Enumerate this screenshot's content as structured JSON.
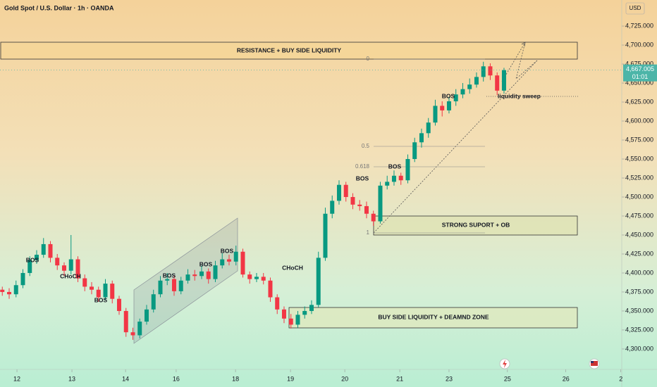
{
  "chart_data": {
    "type": "candlestick",
    "title": "Gold Spot / U.S. Dollar · 1h · OANDA",
    "currency": "USD",
    "up_color": "#089981",
    "down_color": "#f23645",
    "x": [
      1,
      4,
      7,
      10,
      13,
      16,
      19,
      22,
      25,
      28,
      31,
      34,
      37,
      40,
      43,
      46,
      49,
      52,
      55,
      58,
      61,
      64,
      67,
      70,
      73,
      76,
      79,
      82,
      85,
      88,
      91,
      94,
      97,
      100,
      103,
      106,
      109,
      112,
      115,
      118,
      121,
      124,
      127,
      130,
      133,
      136,
      139,
      142,
      145,
      148,
      151,
      154,
      157,
      160,
      163,
      166,
      169,
      172,
      175,
      178,
      181,
      184,
      187,
      190,
      193,
      196,
      199,
      202,
      205,
      208,
      211,
      214,
      217,
      220
    ],
    "open": [
      4378,
      4375,
      4372,
      4384,
      4400,
      4417,
      4424,
      4438,
      4420,
      4410,
      4403,
      4418,
      4393,
      4382,
      4378,
      4368,
      4386,
      4366,
      4350,
      4322,
      4318,
      4336,
      4352,
      4372,
      4390,
      4392,
      4376,
      4390,
      4398,
      4396,
      4402,
      4392,
      4410,
      4418,
      4415,
      4428,
      4398,
      4392,
      4395,
      4390,
      4368,
      4352,
      4340,
      4332,
      4345,
      4350,
      4358,
      4420,
      4478,
      4495,
      4516,
      4500,
      4490,
      4488,
      4478,
      4468,
      4515,
      4520,
      4528,
      4522,
      4550,
      4572,
      4584,
      4598,
      4620,
      4614,
      4626,
      4635,
      4642,
      4648,
      4658,
      4672,
      4660,
      4640
    ],
    "high": [
      4382,
      4380,
      4390,
      4405,
      4422,
      4430,
      4446,
      4442,
      4425,
      4414,
      4450,
      4422,
      4398,
      4388,
      4382,
      4392,
      4390,
      4370,
      4354,
      4328,
      4340,
      4358,
      4378,
      4396,
      4400,
      4396,
      4395,
      4405,
      4404,
      4410,
      4406,
      4416,
      4426,
      4424,
      4436,
      4432,
      4402,
      4400,
      4400,
      4394,
      4372,
      4356,
      4346,
      4350,
      4356,
      4364,
      4428,
      4486,
      4502,
      4522,
      4520,
      4505,
      4496,
      4494,
      4482,
      4520,
      4528,
      4535,
      4532,
      4556,
      4578,
      4590,
      4604,
      4628,
      4626,
      4632,
      4642,
      4650,
      4656,
      4664,
      4678,
      4676,
      4664,
      4670
    ],
    "low": [
      4370,
      4366,
      4368,
      4380,
      4396,
      4412,
      4420,
      4414,
      4404,
      4396,
      4398,
      4388,
      4376,
      4372,
      4362,
      4364,
      4360,
      4345,
      4316,
      4312,
      4314,
      4332,
      4348,
      4368,
      4384,
      4370,
      4372,
      4386,
      4390,
      4392,
      4386,
      4388,
      4406,
      4410,
      4410,
      4394,
      4386,
      4388,
      4385,
      4362,
      4346,
      4334,
      4327,
      4328,
      4340,
      4346,
      4355,
      4416,
      4472,
      4490,
      4494,
      4484,
      4482,
      4472,
      4462,
      4465,
      4510,
      4515,
      4516,
      4518,
      4546,
      4565,
      4578,
      4594,
      4606,
      4610,
      4620,
      4630,
      4636,
      4644,
      4652,
      4654,
      4634,
      4636
    ],
    "close": [
      4375,
      4372,
      4384,
      4400,
      4417,
      4424,
      4438,
      4420,
      4410,
      4403,
      4418,
      4393,
      4382,
      4378,
      4368,
      4386,
      4366,
      4350,
      4322,
      4318,
      4336,
      4352,
      4372,
      4390,
      4392,
      4376,
      4390,
      4398,
      4396,
      4402,
      4392,
      4410,
      4418,
      4415,
      4428,
      4398,
      4392,
      4395,
      4390,
      4368,
      4352,
      4340,
      4332,
      4345,
      4350,
      4358,
      4420,
      4478,
      4495,
      4516,
      4500,
      4490,
      4488,
      4478,
      4468,
      4515,
      4520,
      4528,
      4522,
      4550,
      4572,
      4584,
      4598,
      4620,
      4614,
      4626,
      4635,
      4642,
      4648,
      4658,
      4672,
      4660,
      4640,
      4667
    ],
    "xlim": [
      0,
      271.4
    ],
    "xticks": [
      {
        "value": 7.4,
        "label": "12"
      },
      {
        "value": 31.4,
        "label": "13"
      },
      {
        "value": 54.8,
        "label": "14"
      },
      {
        "value": 76.9,
        "label": "16"
      },
      {
        "value": 102.8,
        "label": "18"
      },
      {
        "value": 126.8,
        "label": "19"
      },
      {
        "value": 150.5,
        "label": "20"
      },
      {
        "value": 174.5,
        "label": "21"
      },
      {
        "value": 196,
        "label": "23"
      },
      {
        "value": 221.5,
        "label": "25"
      },
      {
        "value": 247,
        "label": "26"
      },
      {
        "value": 271,
        "label": "2"
      }
    ],
    "ylim": [
      4273.1,
      4759.3
    ],
    "yticks": [
      {
        "value": 4300,
        "label": "4,300.000"
      },
      {
        "value": 4325,
        "label": "4,325.000"
      },
      {
        "value": 4350,
        "label": "4,350.000"
      },
      {
        "value": 4375,
        "label": "4,375.000"
      },
      {
        "value": 4400,
        "label": "4,400.000"
      },
      {
        "value": 4425,
        "label": "4,425.000"
      },
      {
        "value": 4450,
        "label": "4,450.000"
      },
      {
        "value": 4475,
        "label": "4,475.000"
      },
      {
        "value": 4500,
        "label": "4,500.000"
      },
      {
        "value": 4525,
        "label": "4,525.000"
      },
      {
        "value": 4550,
        "label": "4,550.000"
      },
      {
        "value": 4575,
        "label": "4,575.000"
      },
      {
        "value": 4600,
        "label": "4,600.000"
      },
      {
        "value": 4625,
        "label": "4,625.000"
      },
      {
        "value": 4650,
        "label": "4,650.000"
      },
      {
        "value": 4675,
        "label": "4,675.000"
      },
      {
        "value": 4700,
        "label": "4,700.000"
      },
      {
        "value": 4725,
        "label": "4,725.000"
      }
    ],
    "last_price": {
      "value": 4667.005,
      "label": "4,667.005",
      "countdown": "01:01",
      "color": "#4cb5a8"
    },
    "annotations": [
      "RESISTANCE + BUY SIDE LIQUIDITY",
      "STRONG SUPORT + OB",
      "BUY SIDE LIQUIDITY + DEAMND ZONE",
      "liquidity sweep",
      "BOS",
      "CHoCH",
      "BOS",
      "BOS",
      "BOS",
      "BOS",
      "CHoCH",
      "BOS",
      "BOS",
      "BOS",
      "0",
      "0.5",
      "0.618",
      "1"
    ]
  }
}
